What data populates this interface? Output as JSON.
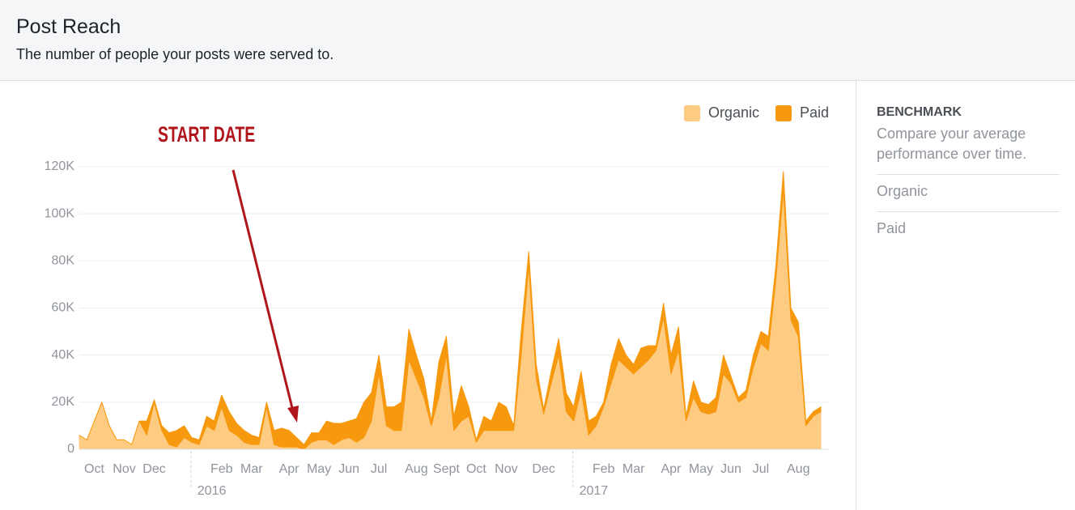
{
  "header": {
    "title": "Post Reach",
    "subtitle": "The number of people your posts were served to."
  },
  "sidebar": {
    "heading": "BENCHMARK",
    "description": "Compare your average performance over time.",
    "options": [
      "Organic",
      "Paid"
    ]
  },
  "chart_data": {
    "type": "stacked_area",
    "annotation": "START DATE",
    "categories": [
      null,
      null,
      "Oct",
      null,
      null,
      null,
      "Nov",
      null,
      null,
      null,
      "Dec",
      null,
      null,
      null,
      null,
      null,
      null,
      null,
      null,
      "Feb",
      null,
      null,
      null,
      "Mar",
      null,
      null,
      null,
      null,
      "Apr",
      null,
      null,
      null,
      "May",
      null,
      null,
      null,
      "Jun",
      null,
      null,
      null,
      "Jul",
      null,
      null,
      null,
      null,
      "Aug",
      null,
      null,
      null,
      "Sept",
      null,
      null,
      null,
      "Oct",
      null,
      null,
      null,
      "Nov",
      null,
      null,
      null,
      null,
      "Dec",
      null,
      null,
      null,
      null,
      null,
      null,
      null,
      "Feb",
      null,
      null,
      null,
      "Mar",
      null,
      null,
      null,
      null,
      "Apr",
      null,
      null,
      null,
      "May",
      null,
      null,
      null,
      "Jun",
      null,
      null,
      null,
      "Jul",
      null,
      null,
      null,
      null,
      "Aug",
      null,
      null,
      null
    ],
    "years": [
      {
        "label": "2016",
        "start": 15
      },
      {
        "label": "2017",
        "start": 66
      }
    ],
    "series": [
      {
        "name": "Organic",
        "color": "#fecb82",
        "values": [
          6000,
          4000,
          12000,
          20000,
          10000,
          4000,
          4000,
          2000,
          12000,
          6000,
          20000,
          8000,
          2000,
          1000,
          5000,
          3000,
          2000,
          10000,
          8000,
          18000,
          8000,
          6000,
          3000,
          2000,
          2000,
          18000,
          2000,
          1000,
          1000,
          1000,
          0,
          3000,
          4000,
          4000,
          2000,
          4000,
          5000,
          3000,
          5000,
          12000,
          32000,
          10000,
          8000,
          8000,
          38000,
          30000,
          22000,
          10000,
          22000,
          40000,
          8000,
          12000,
          14000,
          3000,
          8000,
          8000,
          8000,
          8000,
          8000,
          40000,
          78000,
          30000,
          15000,
          28000,
          40000,
          16000,
          12000,
          25000,
          6000,
          10000,
          18000,
          28000,
          38000,
          35000,
          32000,
          35000,
          38000,
          42000,
          56000,
          32000,
          42000,
          12000,
          22000,
          16000,
          15000,
          16000,
          32000,
          28000,
          20000,
          22000,
          35000,
          45000,
          42000,
          72000,
          110000,
          55000,
          48000,
          10000,
          14000,
          16000
        ]
      },
      {
        "name": "Paid",
        "color": "#f7990f",
        "values": [
          0,
          0,
          0,
          0,
          0,
          0,
          0,
          0,
          0,
          6000,
          1000,
          2000,
          5000,
          7000,
          5000,
          2000,
          2000,
          4000,
          4000,
          5000,
          8000,
          5000,
          5000,
          4000,
          3000,
          2000,
          6000,
          8000,
          7000,
          4000,
          2000,
          4000,
          3000,
          8000,
          9000,
          7000,
          7000,
          10000,
          15000,
          12000,
          8000,
          8000,
          10000,
          12000,
          13000,
          10000,
          8000,
          2000,
          15000,
          8000,
          6000,
          15000,
          4000,
          1000,
          6000,
          4000,
          12000,
          10000,
          2000,
          10000,
          6000,
          6000,
          2000,
          5000,
          7000,
          8000,
          6000,
          8000,
          6000,
          4000,
          2000,
          8000,
          9000,
          5000,
          4000,
          8000,
          6000,
          2000,
          6000,
          8000,
          10000,
          2000,
          7000,
          4000,
          4000,
          6000,
          8000,
          3000,
          2000,
          3000,
          5000,
          5000,
          6000,
          6000,
          8000,
          5000,
          6000,
          2000,
          2000,
          2000
        ]
      }
    ],
    "ylim": [
      0,
      120000
    ],
    "yticks": [
      0,
      {
        "value": 20000,
        "label": "20K"
      },
      {
        "value": 40000,
        "label": "40K"
      },
      {
        "value": 60000,
        "label": "60K"
      },
      {
        "value": 80000,
        "label": "80K"
      },
      {
        "value": 100000,
        "label": "100K"
      },
      {
        "value": 120000,
        "label": "120K"
      }
    ],
    "grid": true,
    "legend": "top-right"
  }
}
